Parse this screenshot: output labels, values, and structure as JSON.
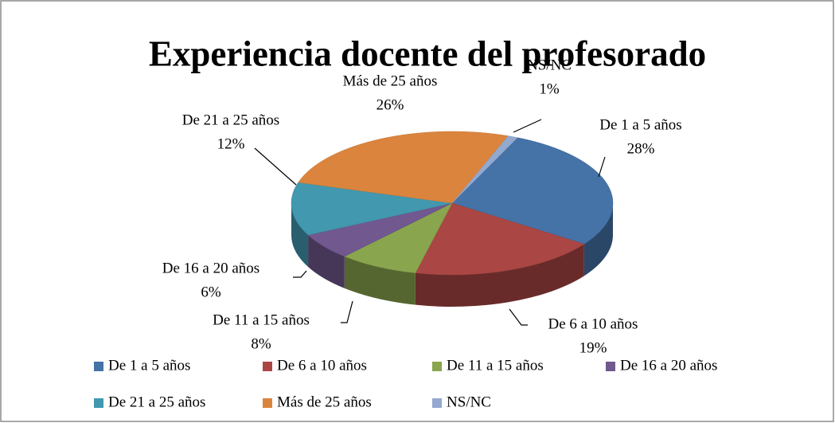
{
  "chart_data": {
    "type": "pie3d",
    "title": "Experiencia docente del profesorado",
    "categories": [
      "De 1 a 5 años",
      "De 6 a 10 años",
      "De 11 a 15 años",
      "De 16 a 20 años",
      "De 21 a 25 años",
      "Más de 25 años",
      "NS/NC"
    ],
    "values": [
      28,
      19,
      8,
      6,
      12,
      26,
      1
    ],
    "value_labels": [
      "28%",
      "19%",
      "8%",
      "6%",
      "12%",
      "26%",
      "1%"
    ],
    "colors": [
      "#4572a7",
      "#aa4643",
      "#89a54e",
      "#71588f",
      "#4198af",
      "#db843d",
      "#93a9cf"
    ],
    "legend": "bottom"
  }
}
